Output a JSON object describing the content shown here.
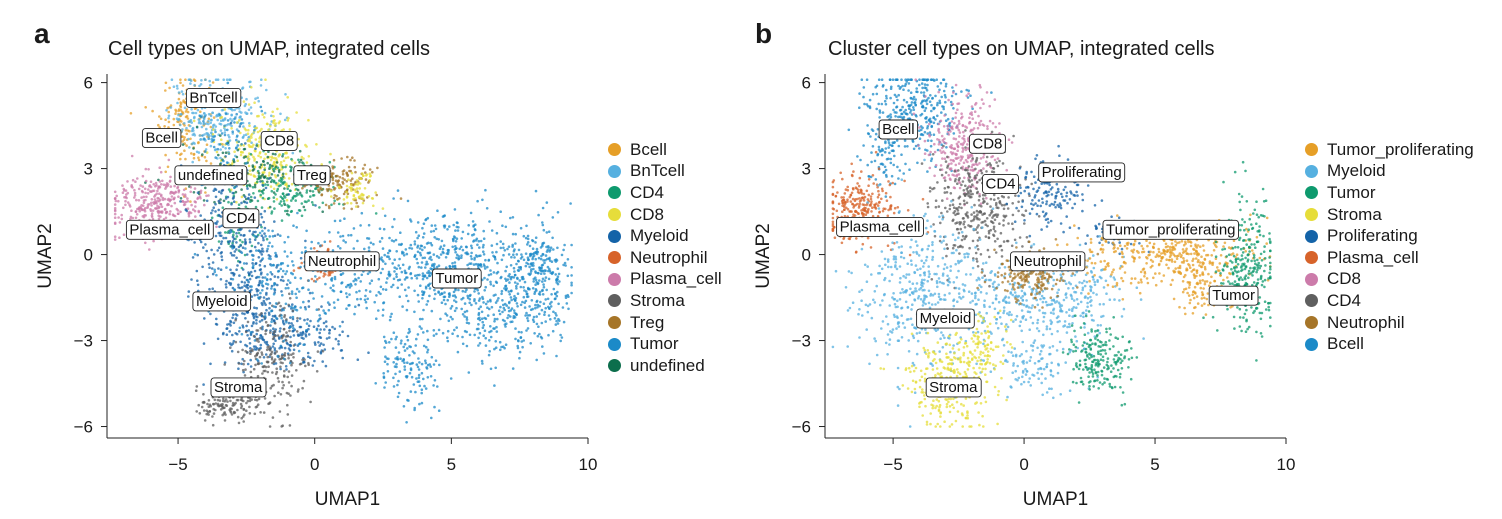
{
  "figures": [
    {
      "letter": "a",
      "title": "Cell types on UMAP, integrated cells",
      "legend": [
        "Bcell",
        "BnTcell",
        "CD4",
        "CD8",
        "Myeloid",
        "Neutrophil",
        "Plasma_cell",
        "Stroma",
        "Treg",
        "Tumor",
        "undefined"
      ]
    },
    {
      "letter": "b",
      "title": "Cluster cell types on UMAP, integrated cells",
      "legend": [
        "Tumor_proliferating",
        "Myeloid",
        "Tumor",
        "Stroma",
        "Proliferating",
        "Plasma_cell",
        "CD8",
        "CD4",
        "Neutrophil",
        "Bcell"
      ]
    }
  ],
  "colors": {
    "orange": "#E69F27",
    "skyblue": "#56B0E0",
    "green": "#0E9A6E",
    "yellow": "#E6DD3A",
    "blue": "#1463A8",
    "vermilion": "#D7632A",
    "pink": "#CC7BAA",
    "gray": "#5F5F5F",
    "brown": "#A67528",
    "tumorblue": "#1B8AC8",
    "darkgreen": "#0C6E4C"
  },
  "chart_data": [
    {
      "type": "scatter",
      "title": "Cell types on UMAP, integrated cells",
      "xlabel": "UMAP1",
      "ylabel": "UMAP2",
      "xlim": [
        -7.6,
        10.0
      ],
      "ylim": [
        -6.4,
        6.3
      ],
      "xticks": [
        -5,
        0,
        5,
        10
      ],
      "yticks": [
        -6,
        -3,
        0,
        3,
        6
      ],
      "grid": false,
      "legend_position": "right",
      "categories": [
        {
          "name": "Bcell",
          "color": "#E69F27"
        },
        {
          "name": "BnTcell",
          "color": "#56B0E0"
        },
        {
          "name": "CD4",
          "color": "#0E9A6E"
        },
        {
          "name": "CD8",
          "color": "#E6DD3A"
        },
        {
          "name": "Myeloid",
          "color": "#1463A8"
        },
        {
          "name": "Neutrophil",
          "color": "#D7632A"
        },
        {
          "name": "Plasma_cell",
          "color": "#CC7BAA"
        },
        {
          "name": "Stroma",
          "color": "#5F5F5F"
        },
        {
          "name": "Treg",
          "color": "#A67528"
        },
        {
          "name": "Tumor",
          "color": "#1B8AC8"
        },
        {
          "name": "undefined",
          "color": "#0C6E4C"
        }
      ],
      "labels": [
        {
          "text": "BnTcell",
          "x": -3.7,
          "y": 5.5
        },
        {
          "text": "Bcell",
          "x": -5.6,
          "y": 4.1
        },
        {
          "text": "CD8",
          "x": -1.3,
          "y": 4.0
        },
        {
          "text": "undefined",
          "x": -3.8,
          "y": 2.8
        },
        {
          "text": "Treg",
          "x": -0.1,
          "y": 2.8
        },
        {
          "text": "Plasma_cell",
          "x": -5.3,
          "y": 0.9
        },
        {
          "text": "CD4",
          "x": -2.7,
          "y": 1.3
        },
        {
          "text": "Neutrophil",
          "x": 1.0,
          "y": -0.2
        },
        {
          "text": "Tumor",
          "x": 5.2,
          "y": -0.8
        },
        {
          "text": "Myeloid",
          "x": -3.4,
          "y": -1.6
        },
        {
          "text": "Stroma",
          "x": -2.8,
          "y": -4.6
        }
      ],
      "clusters": [
        {
          "cat": "Bcell",
          "cx": -4.8,
          "cy": 4.6,
          "sx": 0.55,
          "sy": 0.9,
          "n": 170
        },
        {
          "cat": "BnTcell",
          "cx": -3.5,
          "cy": 4.8,
          "sx": 0.9,
          "sy": 0.7,
          "n": 300
        },
        {
          "cat": "CD8",
          "cx": -1.8,
          "cy": 3.6,
          "sx": 0.9,
          "sy": 0.8,
          "n": 280
        },
        {
          "cat": "undefined",
          "cx": -2.4,
          "cy": 2.7,
          "sx": 1.2,
          "sy": 0.6,
          "n": 160
        },
        {
          "cat": "CD4",
          "cx": -0.8,
          "cy": 2.3,
          "sx": 0.9,
          "sy": 0.5,
          "n": 160
        },
        {
          "cat": "CD4",
          "cx": -2.8,
          "cy": 1.2,
          "sx": 0.5,
          "sy": 0.7,
          "n": 70
        },
        {
          "cat": "Treg",
          "cx": 1.0,
          "cy": 2.5,
          "sx": 0.6,
          "sy": 0.4,
          "n": 130
        },
        {
          "cat": "CD8",
          "cx": 1.6,
          "cy": 2.2,
          "sx": 0.4,
          "sy": 0.3,
          "n": 60
        },
        {
          "cat": "Plasma_cell",
          "cx": -5.7,
          "cy": 1.8,
          "sx": 0.9,
          "sy": 0.5,
          "n": 320
        },
        {
          "cat": "Myeloid",
          "cx": -3.0,
          "cy": 0.8,
          "sx": 0.8,
          "sy": 1.3,
          "n": 260
        },
        {
          "cat": "Myeloid",
          "cx": -2.2,
          "cy": -1.8,
          "sx": 0.8,
          "sy": 1.0,
          "n": 260
        },
        {
          "cat": "Myeloid",
          "cx": -0.6,
          "cy": -3.0,
          "sx": 1.1,
          "sy": 0.5,
          "n": 150
        },
        {
          "cat": "Neutrophil",
          "cx": 0.3,
          "cy": -0.4,
          "sx": 0.4,
          "sy": 0.3,
          "n": 70
        },
        {
          "cat": "Stroma",
          "cx": -1.6,
          "cy": -3.7,
          "sx": 0.7,
          "sy": 1.0,
          "n": 220
        },
        {
          "cat": "Stroma",
          "cx": -3.2,
          "cy": -5.2,
          "sx": 0.6,
          "sy": 0.3,
          "n": 140
        },
        {
          "cat": "Tumor",
          "cx": 5.2,
          "cy": -0.4,
          "sx": 1.3,
          "sy": 0.9,
          "n": 460
        },
        {
          "cat": "Tumor",
          "cx": 8.2,
          "cy": -0.8,
          "sx": 0.6,
          "sy": 1.0,
          "n": 300
        },
        {
          "cat": "Tumor",
          "cx": 2.0,
          "cy": -0.5,
          "sx": 1.2,
          "sy": 0.8,
          "n": 220
        },
        {
          "cat": "Tumor",
          "cx": 3.4,
          "cy": -3.7,
          "sx": 0.6,
          "sy": 0.8,
          "n": 140
        },
        {
          "cat": "Tumor",
          "cx": 6.6,
          "cy": -2.3,
          "sx": 0.9,
          "sy": 0.7,
          "n": 160
        },
        {
          "cat": "Tumor",
          "cx": -1.2,
          "cy": -0.8,
          "sx": 1.1,
          "sy": 1.2,
          "n": 180
        },
        {
          "cat": "Tumor",
          "cx": -3.2,
          "cy": 4.0,
          "sx": 0.5,
          "sy": 0.7,
          "n": 60
        }
      ]
    },
    {
      "type": "scatter",
      "title": "Cluster cell types on UMAP, integrated cells",
      "xlabel": "UMAP1",
      "ylabel": "UMAP2",
      "xlim": [
        -7.6,
        10.0
      ],
      "ylim": [
        -6.4,
        6.3
      ],
      "xticks": [
        -5,
        0,
        5,
        10
      ],
      "yticks": [
        -6,
        -3,
        0,
        3,
        6
      ],
      "grid": false,
      "legend_position": "right",
      "categories": [
        {
          "name": "Tumor_proliferating",
          "color": "#E69F27"
        },
        {
          "name": "Myeloid",
          "color": "#56B0E0"
        },
        {
          "name": "Tumor",
          "color": "#0E9A6E"
        },
        {
          "name": "Stroma",
          "color": "#E6DD3A"
        },
        {
          "name": "Proliferating",
          "color": "#1463A8"
        },
        {
          "name": "Plasma_cell",
          "color": "#D7632A"
        },
        {
          "name": "CD8",
          "color": "#CC7BAA"
        },
        {
          "name": "CD4",
          "color": "#5F5F5F"
        },
        {
          "name": "Neutrophil",
          "color": "#A67528"
        },
        {
          "name": "Bcell",
          "color": "#1B8AC8"
        }
      ],
      "labels": [
        {
          "text": "Bcell",
          "x": -4.8,
          "y": 4.4
        },
        {
          "text": "CD8",
          "x": -1.4,
          "y": 3.9
        },
        {
          "text": "CD4",
          "x": -0.9,
          "y": 2.5
        },
        {
          "text": "Proliferating",
          "x": 2.2,
          "y": 2.9
        },
        {
          "text": "Plasma_cell",
          "x": -5.5,
          "y": 1.0
        },
        {
          "text": "Tumor_proliferating",
          "x": 5.6,
          "y": 0.9
        },
        {
          "text": "Neutrophil",
          "x": 0.9,
          "y": -0.2
        },
        {
          "text": "Tumor",
          "x": 8.0,
          "y": -1.4
        },
        {
          "text": "Myeloid",
          "x": -3.0,
          "y": -2.2
        },
        {
          "text": "Stroma",
          "x": -2.7,
          "y": -4.6
        }
      ],
      "clusters": [
        {
          "cat": "Bcell",
          "cx": -4.2,
          "cy": 5.0,
          "sx": 0.9,
          "sy": 0.8,
          "n": 330
        },
        {
          "cat": "Bcell",
          "cx": -5.2,
          "cy": 3.4,
          "sx": 0.4,
          "sy": 0.8,
          "n": 80
        },
        {
          "cat": "CD8",
          "cx": -2.3,
          "cy": 3.7,
          "sx": 0.7,
          "sy": 0.9,
          "n": 300
        },
        {
          "cat": "CD4",
          "cx": -1.8,
          "cy": 1.7,
          "sx": 1.0,
          "sy": 1.0,
          "n": 360
        },
        {
          "cat": "Proliferating",
          "cx": 1.0,
          "cy": 2.2,
          "sx": 0.8,
          "sy": 0.6,
          "n": 160
        },
        {
          "cat": "Proliferating",
          "cx": 3.5,
          "cy": 0.8,
          "sx": 0.6,
          "sy": 0.3,
          "n": 70
        },
        {
          "cat": "Plasma_cell",
          "cx": -6.2,
          "cy": 1.6,
          "sx": 0.7,
          "sy": 0.6,
          "n": 290
        },
        {
          "cat": "Myeloid",
          "cx": -3.8,
          "cy": -1.2,
          "sx": 1.3,
          "sy": 1.4,
          "n": 420
        },
        {
          "cat": "Myeloid",
          "cx": -0.3,
          "cy": -1.6,
          "sx": 1.3,
          "sy": 0.7,
          "n": 220
        },
        {
          "cat": "Myeloid",
          "cx": 2.0,
          "cy": -1.4,
          "sx": 0.8,
          "sy": 0.8,
          "n": 160
        },
        {
          "cat": "Myeloid",
          "cx": 0.5,
          "cy": -3.8,
          "sx": 0.8,
          "sy": 0.5,
          "n": 110
        },
        {
          "cat": "Neutrophil",
          "cx": 0.2,
          "cy": -0.7,
          "sx": 0.8,
          "sy": 0.4,
          "n": 180
        },
        {
          "cat": "Tumor_proliferating",
          "cx": 5.4,
          "cy": 0.0,
          "sx": 1.6,
          "sy": 0.5,
          "n": 380
        },
        {
          "cat": "Tumor_proliferating",
          "cx": 6.8,
          "cy": -1.1,
          "sx": 0.5,
          "sy": 0.5,
          "n": 100
        },
        {
          "cat": "Tumor",
          "cx": 8.5,
          "cy": -0.5,
          "sx": 0.5,
          "sy": 1.1,
          "n": 280
        },
        {
          "cat": "Tumor",
          "cx": 2.8,
          "cy": -3.6,
          "sx": 0.6,
          "sy": 0.6,
          "n": 200
        },
        {
          "cat": "Stroma",
          "cx": -2.9,
          "cy": -4.5,
          "sx": 0.8,
          "sy": 0.8,
          "n": 280
        },
        {
          "cat": "Stroma",
          "cx": -1.6,
          "cy": -3.1,
          "sx": 0.5,
          "sy": 0.6,
          "n": 100
        }
      ]
    }
  ]
}
